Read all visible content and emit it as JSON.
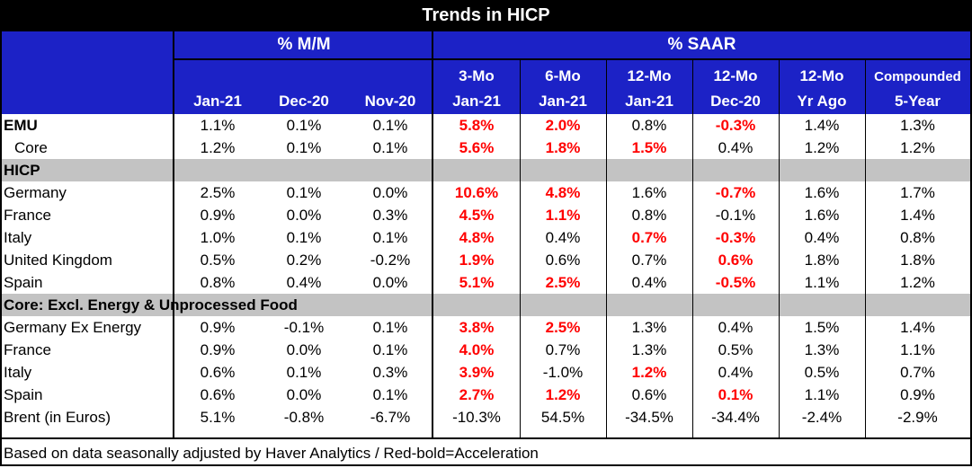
{
  "title": "Trends in HICP",
  "group_headers": {
    "mm": "% M/M",
    "saar": "% SAAR"
  },
  "columns": [
    {
      "line1": "",
      "line2": "Jan-21"
    },
    {
      "line1": "",
      "line2": "Dec-20"
    },
    {
      "line1": "",
      "line2": "Nov-20"
    },
    {
      "line1": "3-Mo",
      "line2": "Jan-21"
    },
    {
      "line1": "6-Mo",
      "line2": "Jan-21"
    },
    {
      "line1": "12-Mo",
      "line2": "Jan-21"
    },
    {
      "line1": "12-Mo",
      "line2": "Dec-20"
    },
    {
      "line1": "12-Mo",
      "line2": "Yr Ago"
    },
    {
      "line1": "Compounded",
      "line2": "5-Year"
    }
  ],
  "rows": [
    {
      "label": "EMU",
      "style": "bold",
      "values": [
        "1.1%",
        "0.1%",
        "0.1%",
        "5.8%",
        "2.0%",
        "0.8%",
        "-0.3%",
        "1.4%",
        "1.3%"
      ],
      "red": [
        3,
        4,
        6
      ]
    },
    {
      "label": "Core",
      "style": "indent",
      "values": [
        "1.2%",
        "0.1%",
        "0.1%",
        "5.6%",
        "1.8%",
        "1.5%",
        "0.4%",
        "1.2%",
        "1.2%"
      ],
      "red": [
        3,
        4,
        5
      ]
    },
    {
      "label": "HICP",
      "style": "section"
    },
    {
      "label": "Germany",
      "values": [
        "2.5%",
        "0.1%",
        "0.0%",
        "10.6%",
        "4.8%",
        "1.6%",
        "-0.7%",
        "1.6%",
        "1.7%"
      ],
      "red": [
        3,
        4,
        6
      ]
    },
    {
      "label": "France",
      "values": [
        "0.9%",
        "0.0%",
        "0.3%",
        "4.5%",
        "1.1%",
        "0.8%",
        "-0.1%",
        "1.6%",
        "1.4%"
      ],
      "red": [
        3,
        4
      ]
    },
    {
      "label": "Italy",
      "values": [
        "1.0%",
        "0.1%",
        "0.1%",
        "4.8%",
        "0.4%",
        "0.7%",
        "-0.3%",
        "0.4%",
        "0.8%"
      ],
      "red": [
        3,
        5,
        6
      ]
    },
    {
      "label": "United Kingdom",
      "values": [
        "0.5%",
        "0.2%",
        "-0.2%",
        "1.9%",
        "0.6%",
        "0.7%",
        "0.6%",
        "1.8%",
        "1.8%"
      ],
      "red": [
        3,
        6
      ]
    },
    {
      "label": "Spain",
      "values": [
        "0.8%",
        "0.4%",
        "0.0%",
        "5.1%",
        "2.5%",
        "0.4%",
        "-0.5%",
        "1.1%",
        "1.2%"
      ],
      "red": [
        3,
        4,
        6
      ]
    },
    {
      "label": "Core: Excl. Energy & Unprocessed Food",
      "style": "section"
    },
    {
      "label": "Germany Ex Energy",
      "values": [
        "0.9%",
        "-0.1%",
        "0.1%",
        "3.8%",
        "2.5%",
        "1.3%",
        "0.4%",
        "1.5%",
        "1.4%"
      ],
      "red": [
        3,
        4
      ]
    },
    {
      "label": "France",
      "values": [
        "0.9%",
        "0.0%",
        "0.1%",
        "4.0%",
        "0.7%",
        "1.3%",
        "0.5%",
        "1.3%",
        "1.1%"
      ],
      "red": [
        3
      ]
    },
    {
      "label": "Italy",
      "values": [
        "0.6%",
        "0.1%",
        "0.3%",
        "3.9%",
        "-1.0%",
        "1.2%",
        "0.4%",
        "0.5%",
        "0.7%"
      ],
      "red": [
        3,
        5
      ]
    },
    {
      "label": "Spain",
      "values": [
        "0.6%",
        "0.0%",
        "0.1%",
        "2.7%",
        "1.2%",
        "0.6%",
        "0.1%",
        "1.1%",
        "0.9%"
      ],
      "red": [
        3,
        4,
        6
      ]
    },
    {
      "label": "Brent (in Euros)",
      "values": [
        "5.1%",
        "-0.8%",
        "-6.7%",
        "-10.3%",
        "54.5%",
        "-34.5%",
        "-34.4%",
        "-2.4%",
        "-2.9%"
      ],
      "red": []
    }
  ],
  "footer": "Based on data seasonally adjusted by Haver Analytics / Red-bold=Acceleration",
  "colors": {
    "header_bg": "#1c22c6",
    "section_bg": "#c3c3c3",
    "accent_red": "#ff0000",
    "title_bg": "#000000"
  }
}
